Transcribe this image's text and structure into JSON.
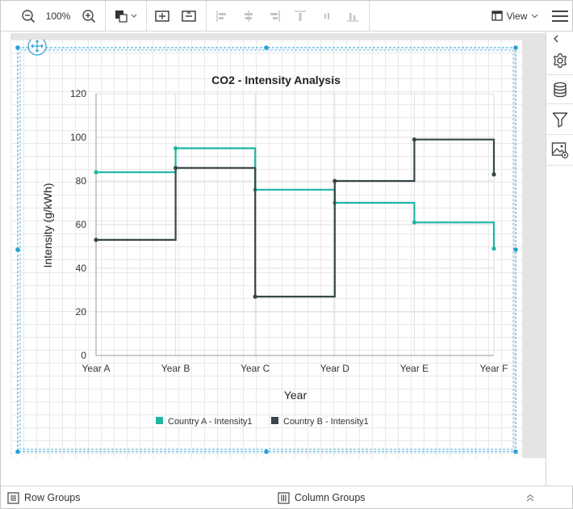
{
  "toolbar": {
    "zoom_out_icon": "zoom-out-icon",
    "zoom_level": "100%",
    "zoom_in_icon": "zoom-in-icon",
    "view_label": "View"
  },
  "chart_data": {
    "type": "line",
    "title": "CO2 - Intensity Analysis",
    "xlabel": "Year",
    "ylabel": "Intensity (g/kWh)",
    "categories": [
      "Year A",
      "Year B",
      "Year C",
      "Year D",
      "Year E",
      "Year F"
    ],
    "ylim": [
      0,
      120
    ],
    "yticks": [
      0,
      20,
      40,
      60,
      80,
      100,
      120
    ],
    "step": true,
    "grid": true,
    "legend_position": "bottom",
    "series": [
      {
        "name": "Country A - Intensity1",
        "color": "#1fb5a5",
        "values": [
          84,
          95,
          76,
          70,
          61,
          49
        ]
      },
      {
        "name": "Country B - Intensity1",
        "color": "#374649",
        "values": [
          53,
          86,
          27,
          80,
          99,
          83
        ]
      }
    ]
  },
  "bottom": {
    "row_groups": "Row Groups",
    "column_groups": "Column Groups"
  }
}
